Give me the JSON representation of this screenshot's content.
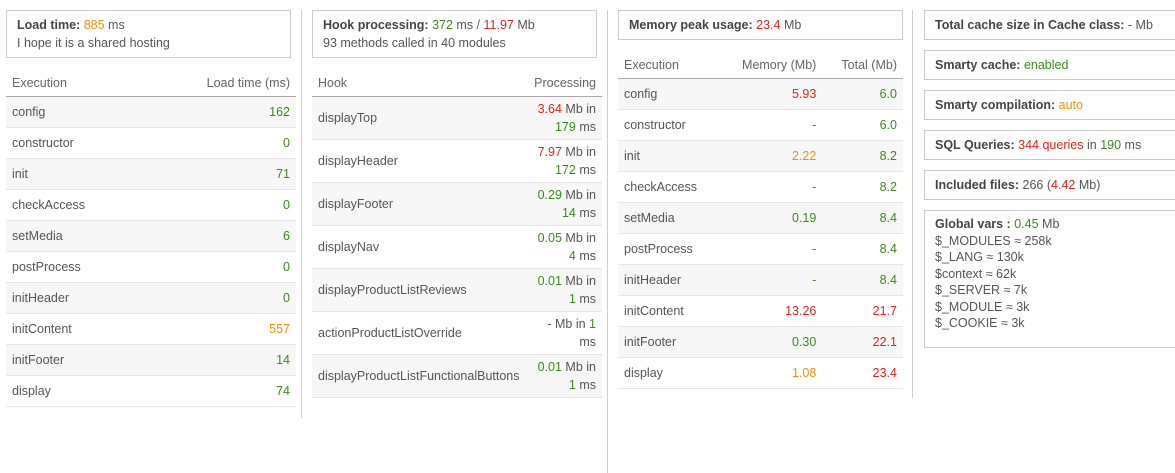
{
  "load": {
    "label": "Load time",
    "value": "885",
    "unit": "ms",
    "note": "I hope it is a shared hosting",
    "headers": [
      "Execution",
      "Load time (ms)"
    ],
    "rows": [
      {
        "name": "config",
        "value": "162",
        "color": "#3c8a1e"
      },
      {
        "name": "constructor",
        "value": "0",
        "color": "#3c8a1e"
      },
      {
        "name": "init",
        "value": "71",
        "color": "#3c8a1e"
      },
      {
        "name": "checkAccess",
        "value": "0",
        "color": "#3c8a1e"
      },
      {
        "name": "setMedia",
        "value": "6",
        "color": "#3c8a1e"
      },
      {
        "name": "postProcess",
        "value": "0",
        "color": "#3c8a1e"
      },
      {
        "name": "initHeader",
        "value": "0",
        "color": "#3c8a1e"
      },
      {
        "name": "initContent",
        "value": "557",
        "color": "#f0900a"
      },
      {
        "name": "initFooter",
        "value": "14",
        "color": "#3c8a1e"
      },
      {
        "name": "display",
        "value": "74",
        "color": "#3c8a1e"
      }
    ]
  },
  "hooks": {
    "label": "Hook processing",
    "time": "372",
    "time_unit": "ms /",
    "memory": "11.97",
    "memory_unit": "Mb",
    "summary": "93 methods called in 40 modules",
    "headers": [
      "Hook",
      "Processing"
    ],
    "rows": [
      {
        "name": "displayTop",
        "mem": "3.64",
        "mem_color": "#d9261c",
        "time": "179",
        "time_color": "#3c8a1e"
      },
      {
        "name": "displayHeader",
        "mem": "7.97",
        "mem_color": "#d9261c",
        "time": "172",
        "time_color": "#3c8a1e"
      },
      {
        "name": "displayFooter",
        "mem": "0.29",
        "mem_color": "#3c8a1e",
        "time": "14",
        "time_color": "#3c8a1e"
      },
      {
        "name": "displayNav",
        "mem": "0.05",
        "mem_color": "#3c8a1e",
        "time": "4",
        "time_color": "#3c8a1e"
      },
      {
        "name": "displayProductListReviews",
        "mem": "0.01",
        "mem_color": "#3c8a1e",
        "time": "1",
        "time_color": "#3c8a1e"
      },
      {
        "name": "actionProductListOverride",
        "mem": "-",
        "mem_color": "#555555",
        "time": "1",
        "time_color": "#3c8a1e"
      },
      {
        "name": "displayProductListFunctionalButtons",
        "mem": "0.01",
        "mem_color": "#3c8a1e",
        "time": "1",
        "time_color": "#3c8a1e"
      }
    ],
    "mb": "Mb",
    "in": "in",
    "ms": "ms"
  },
  "memory": {
    "label": "Memory peak usage",
    "value": "23.4",
    "unit": "Mb",
    "headers": [
      "Execution",
      "Memory (Mb)",
      "Total (Mb)"
    ],
    "rows": [
      {
        "name": "config",
        "mem": "5.93",
        "mem_color": "#d9261c",
        "total": "6.0",
        "total_color": "#3c8a1e"
      },
      {
        "name": "constructor",
        "mem": "-",
        "mem_color": "#3c8a1e",
        "total": "6.0",
        "total_color": "#3c8a1e"
      },
      {
        "name": "init",
        "mem": "2.22",
        "mem_color": "#f0900a",
        "total": "8.2",
        "total_color": "#3c8a1e"
      },
      {
        "name": "checkAccess",
        "mem": "-",
        "mem_color": "#3c8a1e",
        "total": "8.2",
        "total_color": "#3c8a1e"
      },
      {
        "name": "setMedia",
        "mem": "0.19",
        "mem_color": "#3c8a1e",
        "total": "8.4",
        "total_color": "#3c8a1e"
      },
      {
        "name": "postProcess",
        "mem": "-",
        "mem_color": "#3c8a1e",
        "total": "8.4",
        "total_color": "#3c8a1e"
      },
      {
        "name": "initHeader",
        "mem": "-",
        "mem_color": "#3c8a1e",
        "total": "8.4",
        "total_color": "#3c8a1e"
      },
      {
        "name": "initContent",
        "mem": "13.26",
        "mem_color": "#d9261c",
        "total": "21.7",
        "total_color": "#d9261c"
      },
      {
        "name": "initFooter",
        "mem": "0.30",
        "mem_color": "#3c8a1e",
        "total": "22.1",
        "total_color": "#d9261c"
      },
      {
        "name": "display",
        "mem": "1.08",
        "mem_color": "#f0900a",
        "total": "23.4",
        "total_color": "#d9261c"
      }
    ]
  },
  "summary": {
    "cache_label": "Total cache size in Cache class:",
    "cache_value": "- Mb",
    "smarty_cache_label": "Smarty cache:",
    "smarty_cache_value": "enabled",
    "smarty_compile_label": "Smarty compilation:",
    "smarty_compile_value": "auto",
    "sql_label": "SQL Queries:",
    "sql_count": "344 queries",
    "sql_in": "in",
    "sql_time": "190",
    "sql_unit": "ms",
    "files_label": "Included files:",
    "files_count": "266",
    "files_paren_open": "(",
    "files_size": "4.42",
    "files_paren_close": "Mb)",
    "globals_label": "Global vars :",
    "globals_value": "0.45",
    "globals_unit": "Mb",
    "globals": [
      "$_MODULES ≈ 258k",
      "$_LANG ≈ 130k",
      "$context ≈ 62k",
      "$_SERVER ≈ 7k",
      "$_MODULE ≈ 3k",
      "$_COOKIE ≈ 3k"
    ]
  }
}
